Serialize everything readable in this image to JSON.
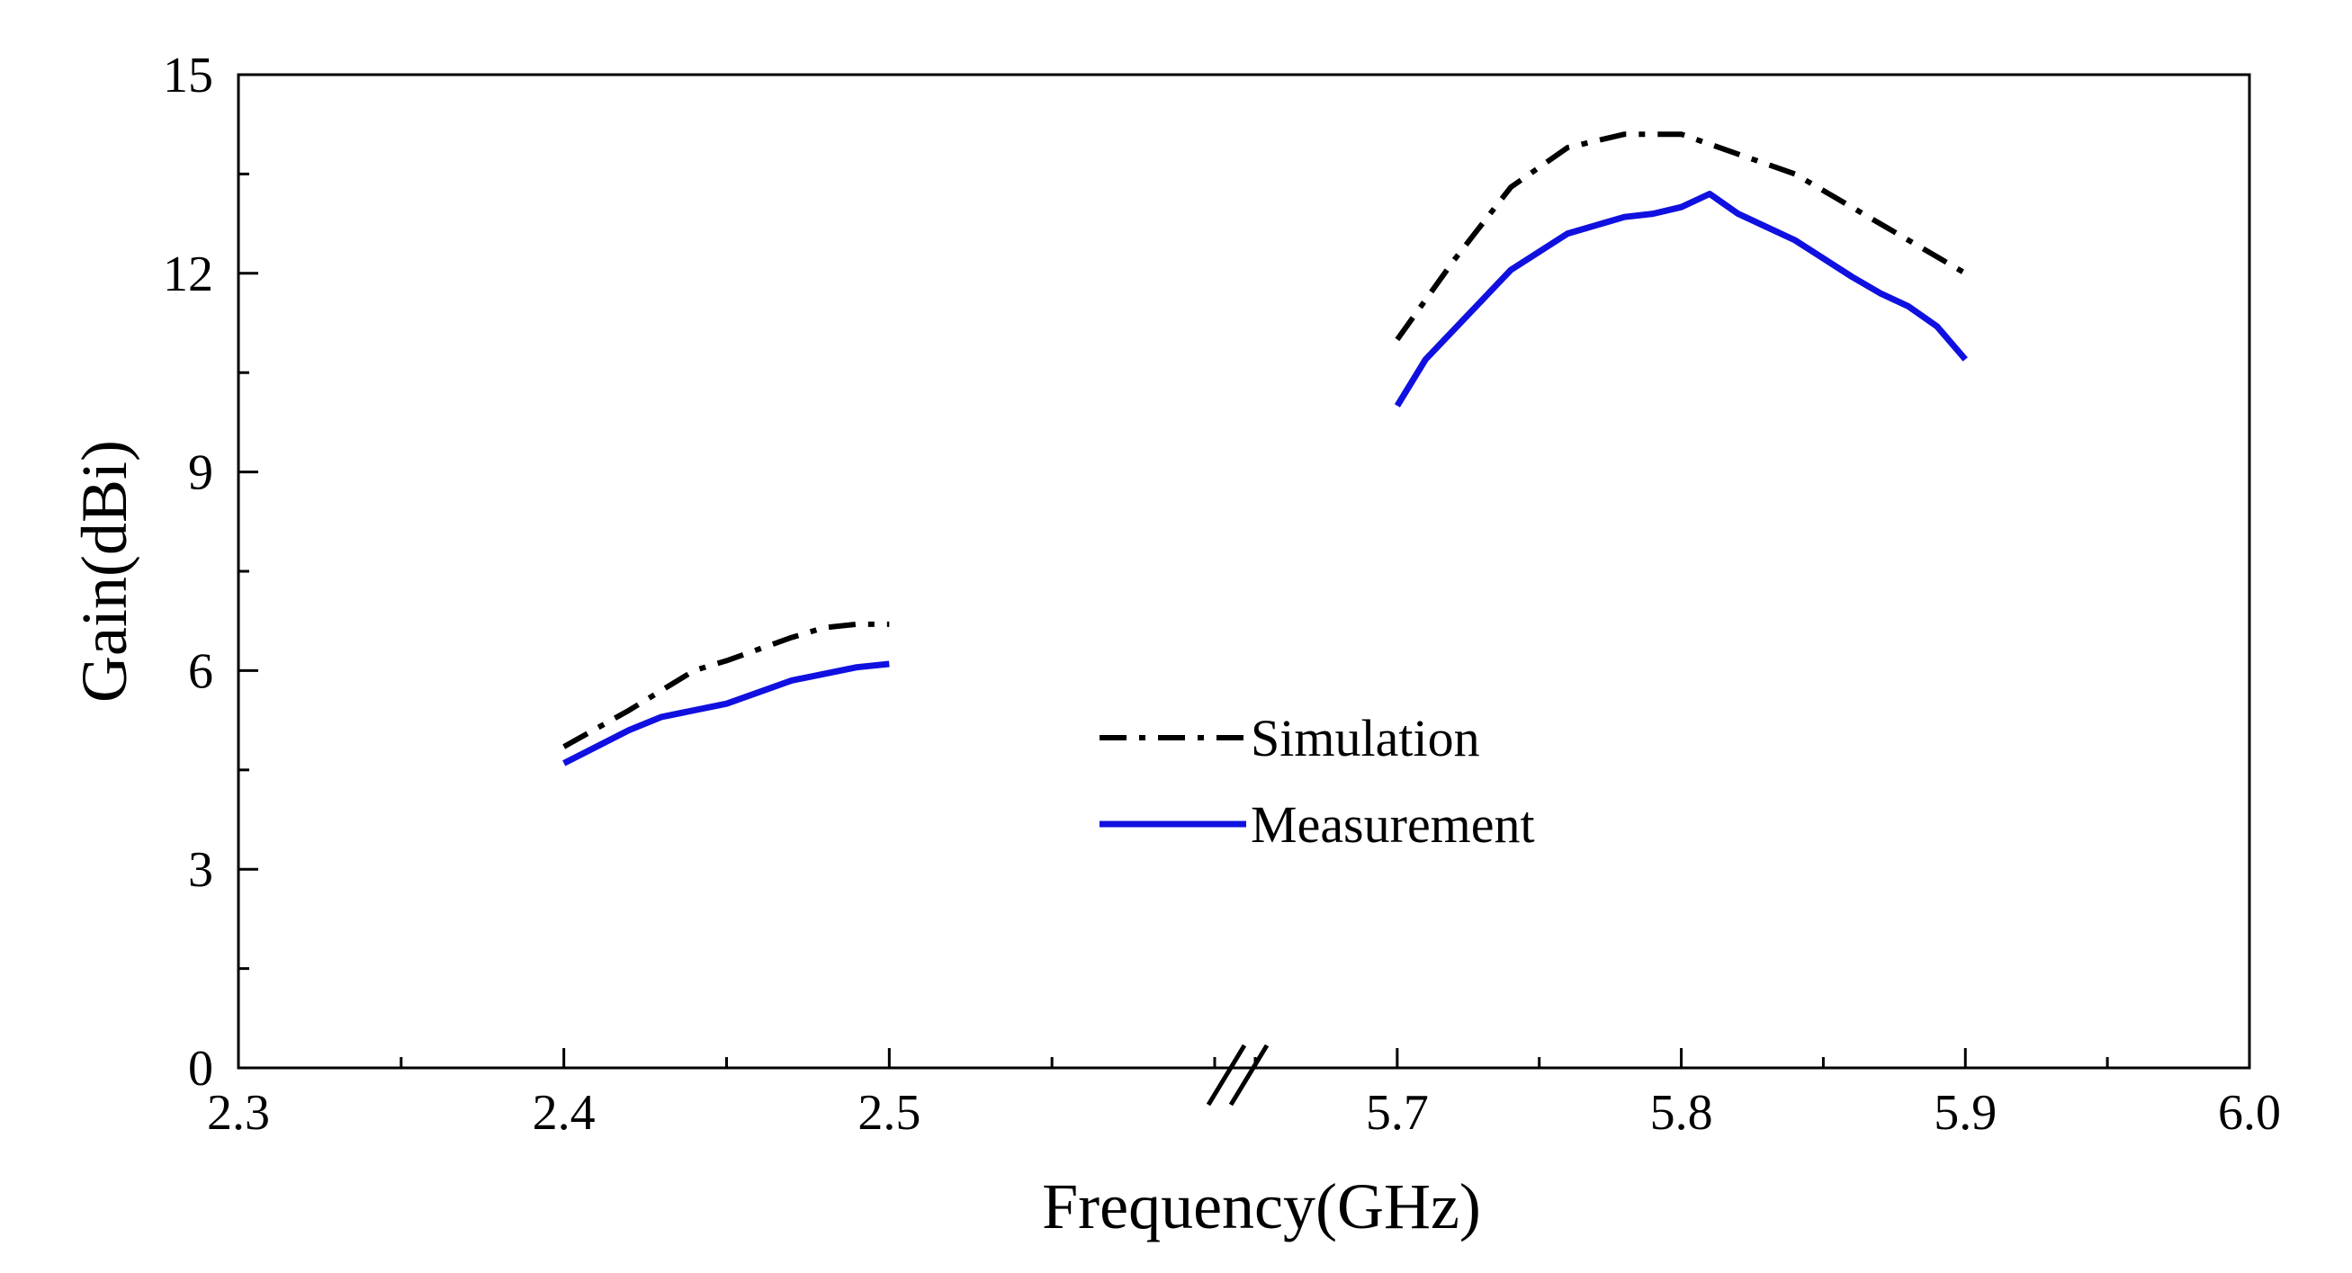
{
  "chart_data": {
    "type": "line",
    "title": "",
    "xlabel": "Frequency(GHz)",
    "ylabel": "Gain(dBi)",
    "ylim": [
      0,
      15
    ],
    "yticks": [
      0,
      3,
      6,
      9,
      12,
      15
    ],
    "axis_break": true,
    "segments": [
      {
        "xlim": [
          2.3,
          2.6
        ],
        "xticks": [
          "2.3",
          "2.4",
          "2.5"
        ],
        "tick_values": [
          2.3,
          2.4,
          2.5
        ]
      },
      {
        "xlim": [
          5.65,
          6.0
        ],
        "xticks": [
          "5.7",
          "5.8",
          "5.9",
          "6.0"
        ],
        "tick_values": [
          5.7,
          5.8,
          5.9,
          6.0
        ]
      }
    ],
    "legend_position": "center",
    "grid": false,
    "series": [
      {
        "name": "Simulation",
        "color": "#000000",
        "style": "dash-dot",
        "points": [
          [
            2.4,
            4.85
          ],
          [
            2.42,
            5.4
          ],
          [
            2.44,
            6.0
          ],
          [
            2.45,
            6.15
          ],
          [
            2.47,
            6.5
          ],
          [
            2.48,
            6.65
          ],
          [
            2.49,
            6.7
          ],
          [
            2.5,
            6.7
          ],
          [
            5.7,
            11.0
          ],
          [
            5.72,
            12.2
          ],
          [
            5.74,
            13.3
          ],
          [
            5.76,
            13.9
          ],
          [
            5.78,
            14.1
          ],
          [
            5.8,
            14.1
          ],
          [
            5.82,
            13.8
          ],
          [
            5.84,
            13.5
          ],
          [
            5.86,
            13.0
          ],
          [
            5.88,
            12.5
          ],
          [
            5.9,
            12.0
          ]
        ]
      },
      {
        "name": "Measurement",
        "color": "#1010e0",
        "style": "solid",
        "points": [
          [
            2.4,
            4.6
          ],
          [
            2.42,
            5.1
          ],
          [
            2.43,
            5.3
          ],
          [
            2.45,
            5.5
          ],
          [
            2.47,
            5.85
          ],
          [
            2.48,
            5.95
          ],
          [
            2.49,
            6.05
          ],
          [
            2.5,
            6.1
          ],
          [
            5.7,
            10.0
          ],
          [
            5.71,
            10.7
          ],
          [
            5.74,
            12.05
          ],
          [
            5.76,
            12.6
          ],
          [
            5.78,
            12.85
          ],
          [
            5.79,
            12.9
          ],
          [
            5.8,
            13.0
          ],
          [
            5.81,
            13.2
          ],
          [
            5.82,
            12.9
          ],
          [
            5.84,
            12.5
          ],
          [
            5.86,
            11.95
          ],
          [
            5.87,
            11.7
          ],
          [
            5.88,
            11.5
          ],
          [
            5.89,
            11.2
          ],
          [
            5.9,
            10.7
          ]
        ]
      }
    ]
  }
}
